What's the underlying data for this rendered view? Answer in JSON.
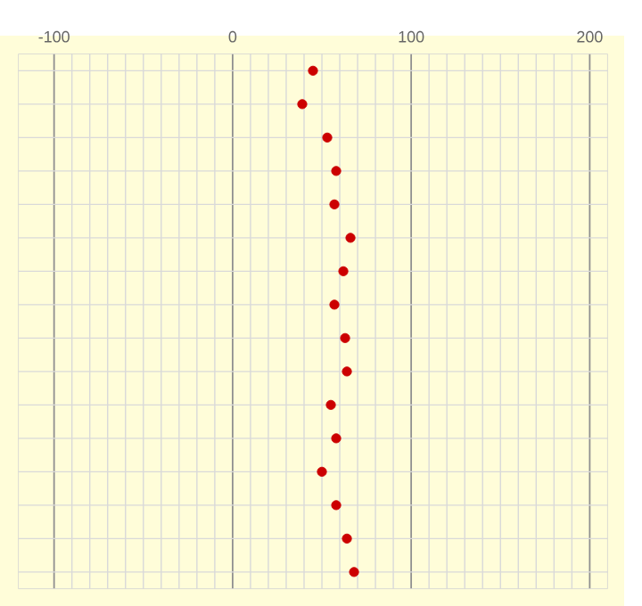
{
  "chart_data": {
    "type": "scatter",
    "orientation": "horizontal",
    "categories": [
      null,
      null,
      null,
      null,
      null,
      null,
      null,
      null,
      null,
      null,
      null,
      null,
      null,
      null,
      null,
      null
    ],
    "values": [
      45,
      39,
      53,
      58,
      57,
      66,
      62,
      57,
      63,
      64,
      55,
      58,
      50,
      58,
      64,
      68
    ],
    "color": "#cc0000",
    "xlim": [
      -120,
      210
    ],
    "xticks": [
      -100,
      0,
      100,
      200
    ],
    "grid": true,
    "tick_labels": "x"
  }
}
